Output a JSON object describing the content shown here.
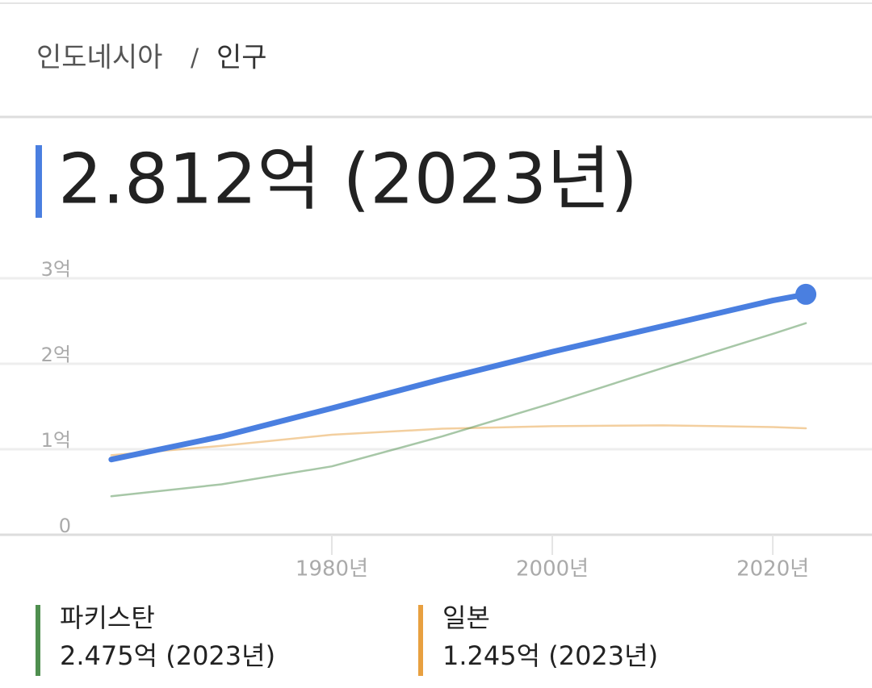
{
  "breadcrumb": {
    "country": "인도네시아",
    "separator": "/",
    "topic": "인구"
  },
  "headline": "2.812억 (2023년)",
  "chart_data": {
    "type": "line",
    "x": [
      1960,
      1970,
      1980,
      1990,
      2000,
      2010,
      2020,
      2023
    ],
    "series": [
      {
        "color": "#4a7fe0",
        "values": [
          0.88,
          1.15,
          1.48,
          1.82,
          2.14,
          2.44,
          2.74,
          2.812
        ]
      },
      {
        "name": "파키스탄",
        "latest_label": "2.475억 (2023년)",
        "color": "#4f8f4f",
        "values": [
          0.45,
          0.59,
          0.8,
          1.15,
          1.54,
          1.95,
          2.35,
          2.475
        ]
      },
      {
        "name": "일본",
        "latest_label": "1.245억 (2023년)",
        "color": "#e8a040",
        "values": [
          0.93,
          1.04,
          1.17,
          1.24,
          1.27,
          1.28,
          1.26,
          1.245
        ]
      }
    ],
    "xlim": [
      1952.1,
      2027.9
    ],
    "xticks": [
      {
        "value": 1980,
        "label": "1980년"
      },
      {
        "value": 2000,
        "label": "2000년"
      },
      {
        "value": 2020,
        "label": "2020년"
      }
    ],
    "ylim": [
      0,
      3
    ],
    "yticks": [
      0,
      {
        "value": 1,
        "label": "1억"
      },
      {
        "value": 2,
        "label": "2억"
      },
      {
        "value": 3,
        "label": "3억"
      }
    ],
    "grid": true
  }
}
